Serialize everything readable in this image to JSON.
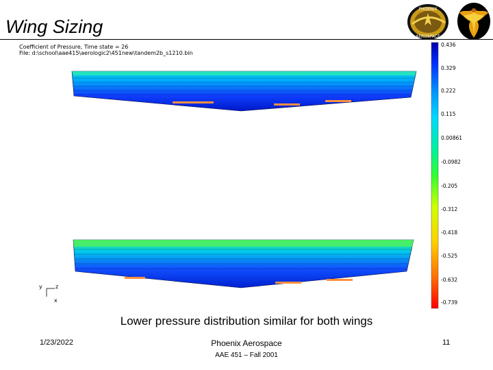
{
  "slide": {
    "title": "Wing Sizing",
    "caption": "Lower pressure distribution similar for both wings"
  },
  "plot": {
    "title_line": "Coefficient of Pressure, Time state = 26",
    "file_line": "File: d:\\school\\aae415\\aerologic2\\451new\\tandem2b_s1210.bin",
    "colorbar_ticks": [
      "0.436",
      "0.329",
      "0.222",
      "0.115",
      "0.00861",
      "-0.0982",
      "-0.205",
      "-0.312",
      "-0.418",
      "-0.525",
      "-0.632",
      "-0.739"
    ],
    "colorbar_colors": [
      "#ff0000",
      "#ff7a00",
      "#ffd000",
      "#f0ff00",
      "#a0ff00",
      "#30ff40",
      "#00e8b0",
      "#00c8ff",
      "#0090ff",
      "#0050ff",
      "#0020e0",
      "#0000b0"
    ],
    "axis": {
      "y": "y",
      "z": "z",
      "x": "x"
    }
  },
  "logos": {
    "left_text_top": "PHOENIX",
    "left_text_bottom": "AEROSPACE"
  },
  "footer": {
    "date": "1/23/2022",
    "company": "Phoenix Aerospace",
    "course": "AAE 451 – Fall 2001",
    "page": "11"
  }
}
